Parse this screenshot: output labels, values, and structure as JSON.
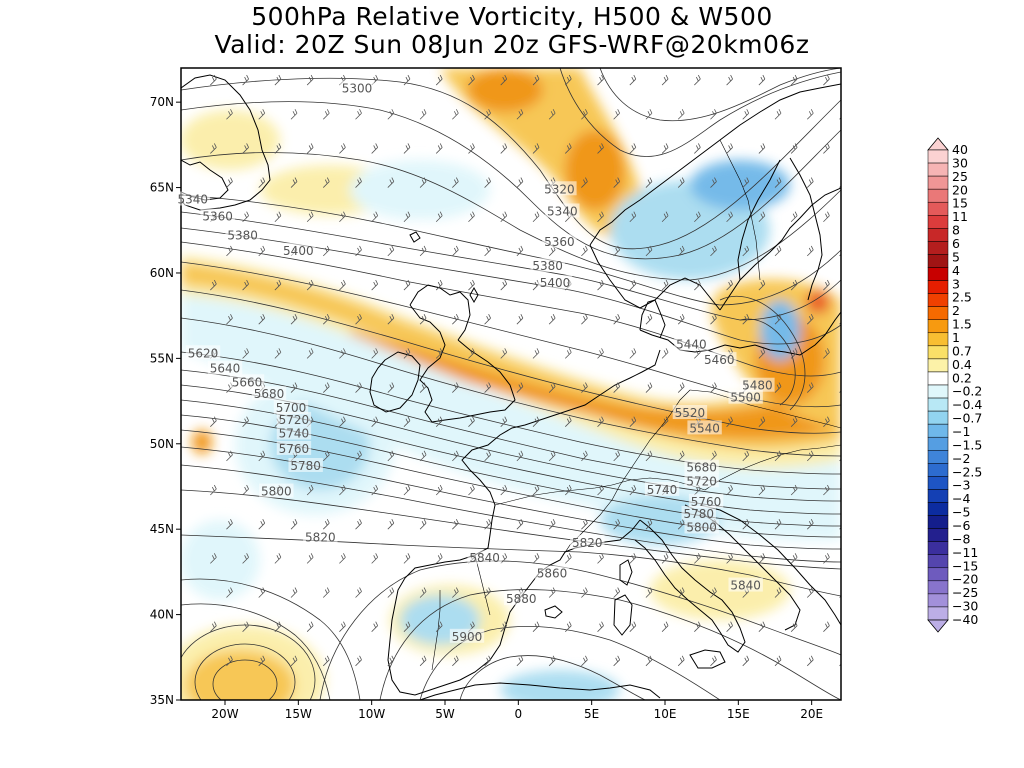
{
  "title_line1": "500hPa Relative Vorticity, H500 & W500",
  "title_line2": "Valid: 20Z Sun 08Jun 20z GFS-WRF@20km06z",
  "colors": {
    "background": "#ffffff",
    "coastline": "#000000",
    "height_contour": "#333333",
    "pos_light": "#fbeea8",
    "pos_mid": "#f7c54e",
    "pos_strong": "#f0920f",
    "pos_max": "#e8561c",
    "neg_light": "#dff6fb",
    "neg_mid": "#a8dcf0",
    "neg_strong": "#6eb7e8",
    "neg_max": "#3f7fd6"
  },
  "map": {
    "lat_labels": [
      "70N",
      "65N",
      "60N",
      "55N",
      "50N",
      "45N",
      "40N",
      "35N"
    ],
    "lon_labels": [
      "20W",
      "15W",
      "10W",
      "5W",
      "0",
      "5E",
      "10E",
      "15E",
      "20E"
    ],
    "projection": "lat-lon",
    "extent": {
      "lon_min": -23,
      "lon_max": 22,
      "lat_min": 35,
      "lat_max": 72
    }
  },
  "height_labels": [
    {
      "text": "5300",
      "lon": -11,
      "lat": 70.8
    },
    {
      "text": "5320",
      "lon": 2.8,
      "lat": 64.9
    },
    {
      "text": "5340",
      "lon": 3.0,
      "lat": 63.6
    },
    {
      "text": "5340",
      "lon": -22.2,
      "lat": 64.3
    },
    {
      "text": "5360",
      "lon": -20.5,
      "lat": 63.3
    },
    {
      "text": "5360",
      "lon": 2.8,
      "lat": 61.8
    },
    {
      "text": "5380",
      "lon": -18.8,
      "lat": 62.2
    },
    {
      "text": "5380",
      "lon": 2.0,
      "lat": 60.4
    },
    {
      "text": "5400",
      "lon": -15.0,
      "lat": 61.3
    },
    {
      "text": "5400",
      "lon": 2.5,
      "lat": 59.4
    },
    {
      "text": "5440",
      "lon": 11.8,
      "lat": 55.8
    },
    {
      "text": "5460",
      "lon": 13.7,
      "lat": 54.9
    },
    {
      "text": "5480",
      "lon": 16.3,
      "lat": 53.4
    },
    {
      "text": "5500",
      "lon": 15.5,
      "lat": 52.7
    },
    {
      "text": "5520",
      "lon": 11.7,
      "lat": 51.8
    },
    {
      "text": "5540",
      "lon": 12.7,
      "lat": 50.9
    },
    {
      "text": "5620",
      "lon": -21.5,
      "lat": 55.3
    },
    {
      "text": "5640",
      "lon": -20.0,
      "lat": 54.4
    },
    {
      "text": "5660",
      "lon": -18.5,
      "lat": 53.6
    },
    {
      "text": "5680",
      "lon": -17.0,
      "lat": 52.9
    },
    {
      "text": "5700",
      "lon": -15.5,
      "lat": 52.1
    },
    {
      "text": "5720",
      "lon": -15.3,
      "lat": 51.4
    },
    {
      "text": "5740",
      "lon": -15.3,
      "lat": 50.6
    },
    {
      "text": "5760",
      "lon": -15.3,
      "lat": 49.7
    },
    {
      "text": "5780",
      "lon": -14.5,
      "lat": 48.7
    },
    {
      "text": "5800",
      "lon": -16.5,
      "lat": 47.2
    },
    {
      "text": "5820",
      "lon": -13.5,
      "lat": 44.5
    },
    {
      "text": "5820",
      "lon": 4.7,
      "lat": 44.2
    },
    {
      "text": "5840",
      "lon": -2.3,
      "lat": 43.3
    },
    {
      "text": "5840",
      "lon": 15.5,
      "lat": 41.7
    },
    {
      "text": "5860",
      "lon": 2.3,
      "lat": 42.4
    },
    {
      "text": "5880",
      "lon": 0.2,
      "lat": 40.9
    },
    {
      "text": "5900",
      "lon": -3.5,
      "lat": 38.7
    },
    {
      "text": "5680",
      "lon": 12.5,
      "lat": 48.6
    },
    {
      "text": "5720",
      "lon": 12.5,
      "lat": 47.8
    },
    {
      "text": "5740",
      "lon": 9.8,
      "lat": 47.3
    },
    {
      "text": "5760",
      "lon": 12.8,
      "lat": 46.6
    },
    {
      "text": "5780",
      "lon": 12.3,
      "lat": 45.9
    },
    {
      "text": "5800",
      "lon": 12.5,
      "lat": 45.1
    }
  ],
  "colorbar": {
    "labels": [
      "40",
      "30",
      "25",
      "20",
      "15",
      "11",
      "8",
      "6",
      "5",
      "4",
      "3",
      "2.5",
      "2",
      "1.5",
      "1",
      "0.7",
      "0.4",
      "0.2",
      "-0.2",
      "-0.4",
      "-0.7",
      "-1",
      "-1.5",
      "-2",
      "-2.5",
      "-3",
      "-4",
      "-5",
      "-6",
      "-8",
      "-11",
      "-15",
      "-20",
      "-25",
      "-30",
      "-40"
    ],
    "colors": [
      "#fbd2d2",
      "#f6b4b4",
      "#f09696",
      "#ea7878",
      "#e45a5a",
      "#dc3c3c",
      "#c82828",
      "#b41e1e",
      "#a01414",
      "#c80000",
      "#e61e00",
      "#f04000",
      "#f56a00",
      "#f79a10",
      "#f8be32",
      "#fae068",
      "#fcf2a8",
      "#ffffff",
      "#e0f7fb",
      "#b8e8f5",
      "#92d4f0",
      "#6fb8ea",
      "#559ee2",
      "#3f84d9",
      "#2d6ccf",
      "#1e55c4",
      "#1440b4",
      "#0c2ca0",
      "#141e8c",
      "#23208e",
      "#3b2f9e",
      "#5445ae",
      "#6e5bbe",
      "#8874cc",
      "#a290da",
      "#bcaee6"
    ]
  },
  "chart_data": {
    "type": "heatmap",
    "field": "500hPa Relative Vorticity",
    "contour_field": "H500",
    "barb_field": "W500",
    "contour_levels": [
      "5300",
      "5320",
      "5340",
      "5360",
      "5380",
      "5400",
      "5420",
      "5440",
      "5460",
      "5480",
      "5500",
      "5520",
      "5540",
      "5620",
      "5640",
      "5660",
      "5680",
      "5700",
      "5720",
      "5740",
      "5760",
      "5780",
      "5800",
      "5820",
      "5840",
      "5860",
      "5880",
      "5900"
    ],
    "positive_features": [
      {
        "lon": -2.5,
        "lat": 70.5,
        "level": 3
      },
      {
        "lon": 4.0,
        "lat": 66.5,
        "level": 2
      },
      {
        "lon": -9.0,
        "lat": 61.0,
        "level": 1
      },
      {
        "lon": -2.0,
        "lat": 56.5,
        "level": 2
      },
      {
        "lon": 6.0,
        "lat": 53.5,
        "level": 3
      },
      {
        "lon": 13.5,
        "lat": 51.5,
        "level": 3
      },
      {
        "lon": 18.0,
        "lat": 55.5,
        "level": 2
      },
      {
        "lon": 18.0,
        "lat": 58.0,
        "level": 3
      },
      {
        "lon": -17.5,
        "lat": 37.0,
        "level": 2
      },
      {
        "lon": -21.5,
        "lat": 50.0,
        "level": 3
      },
      {
        "lon": 14.0,
        "lat": 60.0,
        "level": 1
      }
    ],
    "negative_features": [
      {
        "lon": -13.0,
        "lat": 49.5,
        "level": 2
      },
      {
        "lon": 11.0,
        "lat": 63.0,
        "level": 2
      },
      {
        "lon": 16.0,
        "lat": 57.5,
        "level": 2
      },
      {
        "lon": -19.0,
        "lat": 56.5,
        "level": 2
      },
      {
        "lon": 7.0,
        "lat": 44.8,
        "level": 1
      },
      {
        "lon": 0.0,
        "lat": 37.5,
        "level": 1
      }
    ]
  }
}
